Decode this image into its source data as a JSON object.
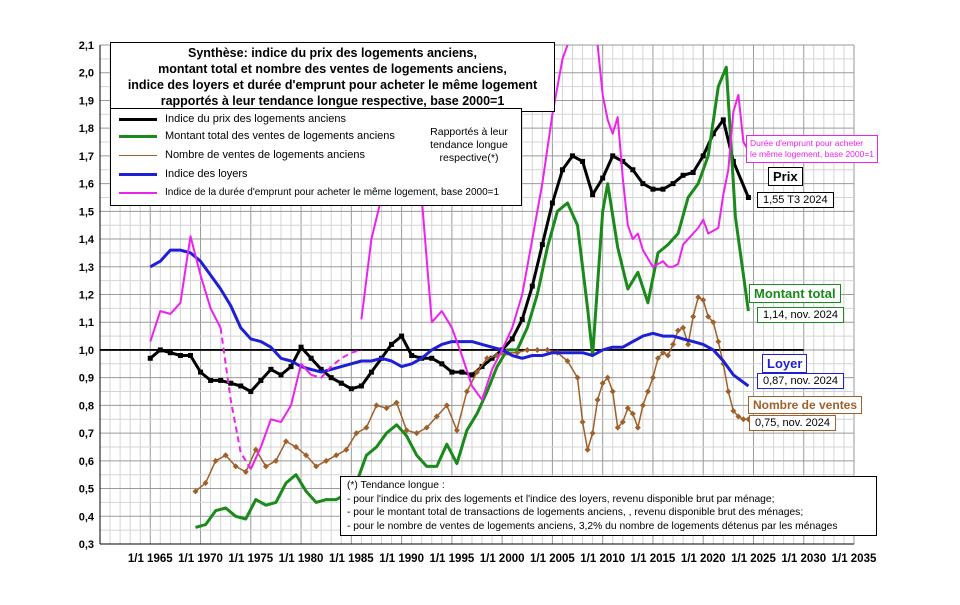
{
  "title_lines": [
    "Synthèse: indice du prix des logements anciens,",
    "montant total et nombre des ventes de logements anciens,",
    "indice des loyers et durée d'emprunt pour acheter le même logement",
    "rapportés à leur tendance longue respective, base 2000=1"
  ],
  "legend": [
    {
      "label": "Indice du prix des logements anciens",
      "color": "#000000"
    },
    {
      "label": "Montant total des ventes de logements anciens",
      "color": "#1a8a1a"
    },
    {
      "label": "Nombre de ventes de logements anciens",
      "color": "#a0602a"
    },
    {
      "label": "Indice des loyers",
      "color": "#1f1fd6"
    },
    {
      "label": "Indice de la durée d'emprunt pour acheter le même logement, base 2000=1",
      "color": "#ee22ee"
    }
  ],
  "note_lines": [
    "Rapportés à leur",
    "tendance longue",
    "respective(*)"
  ],
  "annotations": {
    "duree_lines": [
      "Durée d'emprunt pour acheter",
      "le même logement, base 2000=1"
    ],
    "prix_label": "Prix",
    "prix_value": "1,55 T3 2024",
    "montant_label": "Montant total",
    "montant_value": "1,14, nov. 2024",
    "loyer_label": "Loyer",
    "loyer_value": "0,87, nov. 2024",
    "nombre_label": "Nombre de ventes",
    "nombre_value": "0,75, nov. 2024"
  },
  "footnote_lines": [
    "(*) Tendance longue :",
    "- pour l'indice du prix des logements et l'indice des loyers, revenu disponible brut par ménage;",
    "- pour le montant total de transactions de logements anciens, , revenu disponible brut des ménages;",
    "- pour le nombre de ventes de logements anciens, 3,2% du nombre de logements détenus par les ménages"
  ],
  "chart_data": {
    "type": "line",
    "title": "Synthèse: indice du prix des logements anciens, montant total et nombre des ventes de logements anciens, indice des loyers et durée d'emprunt pour acheter le même logement rapportés à leur tendance longue respective, base 2000=1",
    "xlim": [
      1960,
      2035
    ],
    "ylim": [
      0.3,
      2.1
    ],
    "x_ticks": [
      1965,
      1970,
      1975,
      1980,
      1985,
      1990,
      1995,
      2000,
      2005,
      2010,
      2015,
      2020,
      2025,
      2030,
      2035
    ],
    "x_tick_labels": [
      "1/1 1965",
      "1/1 1970",
      "1/1 1975",
      "1/1 1980",
      "1/1 1985",
      "1/1 1990",
      "1/1 1995",
      "1/1 2000",
      "1/1 2005",
      "1/1 2010",
      "1/1 2015",
      "1/1 2020",
      "1/1 2025",
      "1/1 2030",
      "1/1 2035"
    ],
    "y_ticks": [
      0.3,
      0.4,
      0.5,
      0.6,
      0.7,
      0.8,
      0.9,
      1.0,
      1.1,
      1.2,
      1.3,
      1.4,
      1.5,
      1.6,
      1.7,
      1.8,
      1.9,
      2.0,
      2.1
    ],
    "y_tick_labels": [
      "0,3",
      "0,4",
      "0,5",
      "0,6",
      "0,7",
      "0,8",
      "0,9",
      "1,0",
      "1,1",
      "1,2",
      "1,3",
      "1,4",
      "1,5",
      "1,6",
      "1,7",
      "1,8",
      "1,9",
      "2,0",
      "2,1"
    ],
    "reference_line": 1.0,
    "series": [
      {
        "name": "Indice du prix des logements anciens",
        "color": "#000000",
        "width": 3,
        "x": [
          1965,
          1966,
          1967,
          1968,
          1969,
          1970,
          1971,
          1972,
          1973,
          1974,
          1975,
          1976,
          1977,
          1978,
          1979,
          1980,
          1981,
          1982,
          1983,
          1984,
          1985,
          1986,
          1987,
          1988,
          1989,
          1990,
          1991,
          1992,
          1993,
          1994,
          1995,
          1996,
          1997,
          1998,
          1999,
          2000,
          2001,
          2002,
          2003,
          2004,
          2005,
          2006,
          2007,
          2008,
          2009,
          2010,
          2011,
          2012,
          2013,
          2014,
          2015,
          2016,
          2017,
          2018,
          2019,
          2020,
          2021,
          2022,
          2023,
          2024.5
        ],
        "y": [
          0.97,
          1.0,
          0.99,
          0.98,
          0.98,
          0.92,
          0.89,
          0.89,
          0.88,
          0.87,
          0.85,
          0.89,
          0.93,
          0.91,
          0.94,
          1.01,
          0.97,
          0.93,
          0.9,
          0.88,
          0.86,
          0.87,
          0.92,
          0.97,
          1.02,
          1.05,
          0.98,
          0.97,
          0.97,
          0.95,
          0.92,
          0.92,
          0.91,
          0.94,
          0.97,
          1.0,
          1.04,
          1.11,
          1.23,
          1.38,
          1.53,
          1.65,
          1.7,
          1.68,
          1.56,
          1.62,
          1.7,
          1.68,
          1.65,
          1.6,
          1.58,
          1.58,
          1.6,
          1.63,
          1.64,
          1.7,
          1.78,
          1.83,
          1.68,
          1.55
        ]
      },
      {
        "name": "Montant total des ventes de logements anciens",
        "color": "#1a8a1a",
        "width": 3,
        "x": [
          1969.5,
          1970.5,
          1971.5,
          1972.5,
          1973.5,
          1974.5,
          1975.5,
          1976.5,
          1977.5,
          1978.5,
          1979.5,
          1980.5,
          1981.5,
          1982.5,
          1983.5,
          1984.5,
          1985.5,
          1986.5,
          1987.5,
          1988.5,
          1989.5,
          1990.5,
          1991.5,
          1992.5,
          1993.5,
          1994.5,
          1995.5,
          1996.5,
          1997.5,
          1998.5,
          1999.5,
          2000.5,
          2001.5,
          2002.5,
          2003.5,
          2004.5,
          2005.5,
          2006.5,
          2007.5,
          2008.5,
          2009,
          2010,
          2010.5,
          2011.5,
          2012.5,
          2013.5,
          2014.5,
          2015.5,
          2016.5,
          2017.5,
          2018.5,
          2019.5,
          2020.5,
          2021.5,
          2022.3,
          2023.2,
          2024.5
        ],
        "y": [
          0.36,
          0.37,
          0.42,
          0.43,
          0.4,
          0.39,
          0.46,
          0.44,
          0.45,
          0.52,
          0.55,
          0.49,
          0.45,
          0.46,
          0.46,
          0.48,
          0.52,
          0.62,
          0.65,
          0.7,
          0.73,
          0.69,
          0.62,
          0.58,
          0.58,
          0.66,
          0.59,
          0.71,
          0.77,
          0.85,
          0.94,
          1.0,
          1.0,
          1.08,
          1.2,
          1.37,
          1.5,
          1.53,
          1.45,
          1.15,
          0.98,
          1.5,
          1.6,
          1.37,
          1.22,
          1.28,
          1.17,
          1.35,
          1.38,
          1.42,
          1.55,
          1.6,
          1.7,
          1.95,
          2.02,
          1.48,
          1.14
        ]
      },
      {
        "name": "Nombre de ventes de logements anciens",
        "color": "#a0602a",
        "width": 1.5,
        "marker": true,
        "x": [
          1969.5,
          1970.5,
          1971.5,
          1972.5,
          1973.5,
          1974.5,
          1975.5,
          1976.5,
          1977.5,
          1978.5,
          1979.5,
          1980.5,
          1981.5,
          1982.5,
          1983.5,
          1984.5,
          1985.5,
          1986.5,
          1987.5,
          1988.5,
          1989.5,
          1990.5,
          1991.5,
          1992.5,
          1993.5,
          1994.5,
          1995.5,
          1996.5,
          1997.5,
          1998.5,
          1999.5,
          2000.5,
          2001.5,
          2002.5,
          2003.5,
          2004.5,
          2005.5,
          2006.5,
          2007.5,
          2008,
          2008.5,
          2009,
          2009.5,
          2010,
          2010.5,
          2011,
          2011.5,
          2012,
          2012.5,
          2013,
          2013.5,
          2014,
          2014.5,
          2015,
          2015.5,
          2016,
          2016.5,
          2017,
          2017.5,
          2018,
          2018.5,
          2019,
          2019.5,
          2020,
          2020.5,
          2021,
          2021.5,
          2022,
          2022.5,
          2023,
          2023.5,
          2024,
          2024.5
        ],
        "y": [
          0.49,
          0.52,
          0.6,
          0.62,
          0.58,
          0.56,
          0.64,
          0.58,
          0.6,
          0.67,
          0.65,
          0.62,
          0.58,
          0.6,
          0.62,
          0.64,
          0.7,
          0.72,
          0.8,
          0.79,
          0.81,
          0.71,
          0.7,
          0.72,
          0.76,
          0.8,
          0.71,
          0.85,
          0.92,
          0.97,
          0.98,
          0.99,
          0.99,
          1.0,
          1.0,
          1.0,
          0.99,
          0.96,
          0.9,
          0.74,
          0.64,
          0.7,
          0.82,
          0.88,
          0.9,
          0.85,
          0.72,
          0.74,
          0.79,
          0.77,
          0.72,
          0.8,
          0.85,
          0.9,
          0.97,
          0.99,
          0.98,
          1.02,
          1.07,
          1.08,
          1.02,
          1.12,
          1.19,
          1.18,
          1.12,
          1.1,
          1.03,
          0.95,
          0.85,
          0.78,
          0.76,
          0.75,
          0.75
        ]
      },
      {
        "name": "Indice des loyers",
        "color": "#1f1fd6",
        "width": 3,
        "x": [
          1965,
          1966,
          1967,
          1968,
          1969,
          1970,
          1971,
          1972,
          1973,
          1974,
          1975,
          1976,
          1977,
          1978,
          1979,
          1980,
          1981,
          1982,
          1983,
          1984,
          1985,
          1986,
          1987,
          1988,
          1989,
          1990,
          1991,
          1992,
          1993,
          1994,
          1995,
          1996,
          1997,
          1998,
          1999,
          2000,
          2001,
          2002,
          2003,
          2004,
          2005,
          2006,
          2007,
          2008,
          2009,
          2010,
          2011,
          2012,
          2013,
          2014,
          2015,
          2016,
          2017,
          2018,
          2019,
          2020,
          2021,
          2022,
          2023,
          2024.5
        ],
        "y": [
          1.3,
          1.32,
          1.36,
          1.36,
          1.35,
          1.32,
          1.27,
          1.22,
          1.16,
          1.08,
          1.04,
          1.03,
          1.01,
          0.97,
          0.96,
          0.94,
          0.93,
          0.92,
          0.93,
          0.94,
          0.95,
          0.96,
          0.96,
          0.97,
          0.96,
          0.94,
          0.95,
          0.97,
          1.0,
          1.02,
          1.03,
          1.03,
          1.03,
          1.02,
          1.01,
          1.0,
          0.98,
          0.97,
          0.98,
          0.98,
          0.99,
          0.99,
          0.99,
          0.99,
          0.98,
          1.0,
          1.01,
          1.01,
          1.03,
          1.05,
          1.06,
          1.05,
          1.05,
          1.04,
          1.03,
          1.02,
          1.0,
          0.96,
          0.91,
          0.87
        ]
      },
      {
        "name": "Indice de la durée d'emprunt pour acheter le même logement, base 2000=1",
        "color": "#ee22ee",
        "width": 2,
        "segments": [
          {
            "x": [
              1965,
              1966,
              1967,
              1968,
              1969,
              1970,
              1971,
              1972
            ],
            "y": [
              1.03,
              1.14,
              1.13,
              1.17,
              1.41,
              1.27,
              1.15,
              1.08
            ],
            "dash": false
          },
          {
            "x": [
              1972,
              1973,
              1974,
              1975
            ],
            "y": [
              1.08,
              0.82,
              0.63,
              0.57
            ],
            "dash": true
          },
          {
            "x": [
              1975,
              1976,
              1977,
              1978,
              1979,
              1980,
              1981
            ],
            "y": [
              0.57,
              0.65,
              0.75,
              0.74,
              0.8,
              0.95,
              0.91
            ],
            "dash": false
          },
          {
            "x": [
              1981,
              1982,
              1983,
              1984,
              1985,
              1986
            ],
            "y": [
              0.91,
              0.9,
              0.94,
              0.97,
              0.99,
              1.0
            ],
            "dash": true
          },
          {
            "x": [
              1986,
              1987,
              1988,
              1989,
              1990,
              1991,
              1992,
              1993,
              1994,
              1995,
              1996,
              1997,
              1998,
              1999,
              2000,
              2001,
              2002,
              2003,
              2004,
              2005,
              2006,
              2006.5
            ],
            "y": [
              1.11,
              1.4,
              1.55,
              1.8,
              2.1,
              1.97,
              1.55,
              1.1,
              1.14,
              1.08,
              0.98,
              0.87,
              0.82,
              0.93,
              1.0,
              1.08,
              1.2,
              1.4,
              1.6,
              1.85,
              2.05,
              2.1
            ],
            "dash": false
          },
          {
            "x": [
              2009.5,
              2010,
              2010.5,
              2011,
              2011.5,
              2012,
              2012.5,
              2013,
              2013.5,
              2014,
              2014.5,
              2015,
              2015.5,
              2016,
              2016.5,
              2017,
              2017.5,
              2018,
              2018.5,
              2019,
              2019.5,
              2020,
              2020.5,
              2021,
              2021.5,
              2022,
              2022.5,
              2023,
              2023.5,
              2024,
              2024.5
            ],
            "y": [
              2.1,
              1.92,
              1.83,
              1.78,
              1.84,
              1.62,
              1.45,
              1.4,
              1.42,
              1.36,
              1.33,
              1.3,
              1.31,
              1.32,
              1.3,
              1.3,
              1.31,
              1.38,
              1.4,
              1.42,
              1.44,
              1.47,
              1.42,
              1.43,
              1.44,
              1.56,
              1.65,
              1.86,
              1.92,
              1.75,
              1.72
            ],
            "dash": false
          }
        ]
      }
    ]
  }
}
